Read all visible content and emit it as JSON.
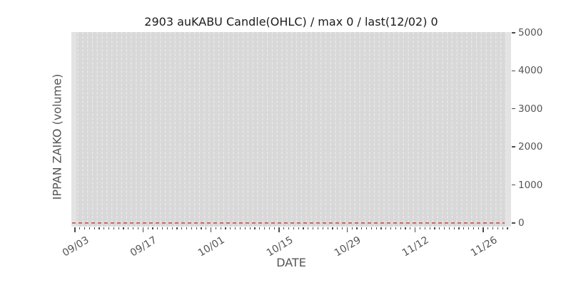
{
  "title": "2903 auKABU Candle(OHLC) / max 0 / last(12/02) 0",
  "axes": {
    "xlabel": "DATE",
    "ylabel": "IPPAN ZAIKO (volume)"
  },
  "colors": {
    "figure_bg": "#ffffff",
    "plot_bg": "#e3e3e3",
    "band_bg": "#d8d8d8",
    "grid_line": "#e9e9e9",
    "zero_line": "#c94f4f",
    "tick_text": "#555555",
    "tick_mark": "#4d4d4d",
    "title_text": "#1c1c1c"
  },
  "chart_data": {
    "type": "line",
    "title": "2903 auKABU Candle(OHLC) / max 0 / last(12/02) 0",
    "xlabel": "DATE",
    "ylabel": "IPPAN ZAIKO (volume)",
    "x_tick_labels": [
      "09/03",
      "09/17",
      "10/01",
      "10/15",
      "10/29",
      "11/12",
      "11/26"
    ],
    "x_tick_days": [
      0,
      14,
      28,
      42,
      56,
      70,
      84
    ],
    "x_minor_tick_every_days": 1,
    "x_range": {
      "start": "09/03",
      "end": "12/02",
      "frequency": "daily",
      "n_points": 91
    },
    "xlim_days": [
      -0.73,
      89.72
    ],
    "y_ticks": [
      0,
      1000,
      2000,
      3000,
      4000,
      5000
    ],
    "y_tick_side": "right",
    "ylim": [
      -94,
      5019
    ],
    "grid": {
      "vertical": true,
      "horizontal": false,
      "style": "dashed",
      "per": "day"
    },
    "series": [
      {
        "name": "IPPAN ZAIKO volume",
        "style": "dashed",
        "values": [
          0,
          0,
          0,
          0,
          0,
          0,
          0,
          0,
          0,
          0,
          0,
          0,
          0,
          0,
          0,
          0,
          0,
          0,
          0,
          0,
          0,
          0,
          0,
          0,
          0,
          0,
          0,
          0,
          0,
          0,
          0,
          0,
          0,
          0,
          0,
          0,
          0,
          0,
          0,
          0,
          0,
          0,
          0,
          0,
          0,
          0,
          0,
          0,
          0,
          0,
          0,
          0,
          0,
          0,
          0,
          0,
          0,
          0,
          0,
          0,
          0,
          0,
          0,
          0,
          0,
          0,
          0,
          0,
          0,
          0,
          0,
          0,
          0,
          0,
          0,
          0,
          0,
          0,
          0,
          0,
          0,
          0,
          0,
          0,
          0,
          0,
          0,
          0,
          0,
          0,
          0
        ]
      }
    ],
    "max_value": 0,
    "last_date": "12/02",
    "last_value": 0
  }
}
